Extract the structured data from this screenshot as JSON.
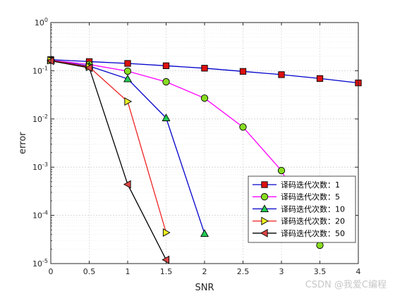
{
  "chart_data": {
    "type": "line",
    "title": "",
    "xlabel": "SNR",
    "ylabel": "error",
    "xlim": [
      0,
      4
    ],
    "ylim": [
      1e-05,
      1
    ],
    "yscale": "log",
    "grid": true,
    "legend_position": "bottom-right",
    "x_ticks": [
      "0",
      "0.5",
      "1",
      "1.5",
      "2",
      "2.5",
      "3",
      "3.5",
      "4"
    ],
    "y_ticks": [
      {
        "base": "10",
        "exp": "-5"
      },
      {
        "base": "10",
        "exp": "-4"
      },
      {
        "base": "10",
        "exp": "-3"
      },
      {
        "base": "10",
        "exp": "-2"
      },
      {
        "base": "10",
        "exp": "-1"
      },
      {
        "base": "10",
        "exp": "0"
      }
    ],
    "series": [
      {
        "name": "译码迭代次数：1",
        "color": "#0000cc",
        "marker": "square",
        "marker_color": "#dd1111",
        "x": [
          0,
          0.5,
          1,
          1.5,
          2,
          2.5,
          3,
          3.5,
          4
        ],
        "y": [
          0.17,
          0.155,
          0.142,
          0.127,
          0.113,
          0.097,
          0.083,
          0.069,
          0.056
        ]
      },
      {
        "name": "译码迭代次数：5",
        "color": "#ff00ff",
        "marker": "circle",
        "marker_color": "#88dd22",
        "x": [
          0,
          0.5,
          1,
          1.5,
          2,
          2.5,
          3,
          3.5
        ],
        "y": [
          0.165,
          0.135,
          0.098,
          0.059,
          0.027,
          0.0068,
          0.00085,
          2.4e-05
        ]
      },
      {
        "name": "译码迭代次数：10",
        "color": "#0000cc",
        "marker": "triangle-up",
        "marker_color": "#22cc55",
        "x": [
          0,
          0.5,
          1,
          1.5,
          2
        ],
        "y": [
          0.165,
          0.125,
          0.068,
          0.0105,
          4.2e-05
        ]
      },
      {
        "name": "译码迭代次数：20",
        "color": "#ee2222",
        "marker": "triangle-right",
        "marker_color": "#eeee22",
        "x": [
          0,
          0.5,
          1,
          1.5
        ],
        "y": [
          0.165,
          0.12,
          0.023,
          4.4e-05
        ]
      },
      {
        "name": "译码迭代次数：50",
        "color": "#000000",
        "marker": "triangle-left",
        "marker_color": "#dd4444",
        "x": [
          0,
          0.5,
          1,
          1.5
        ],
        "y": [
          0.16,
          0.115,
          0.00044,
          1.2e-05
        ]
      }
    ]
  },
  "watermark": "CSDN @我爱C编程"
}
